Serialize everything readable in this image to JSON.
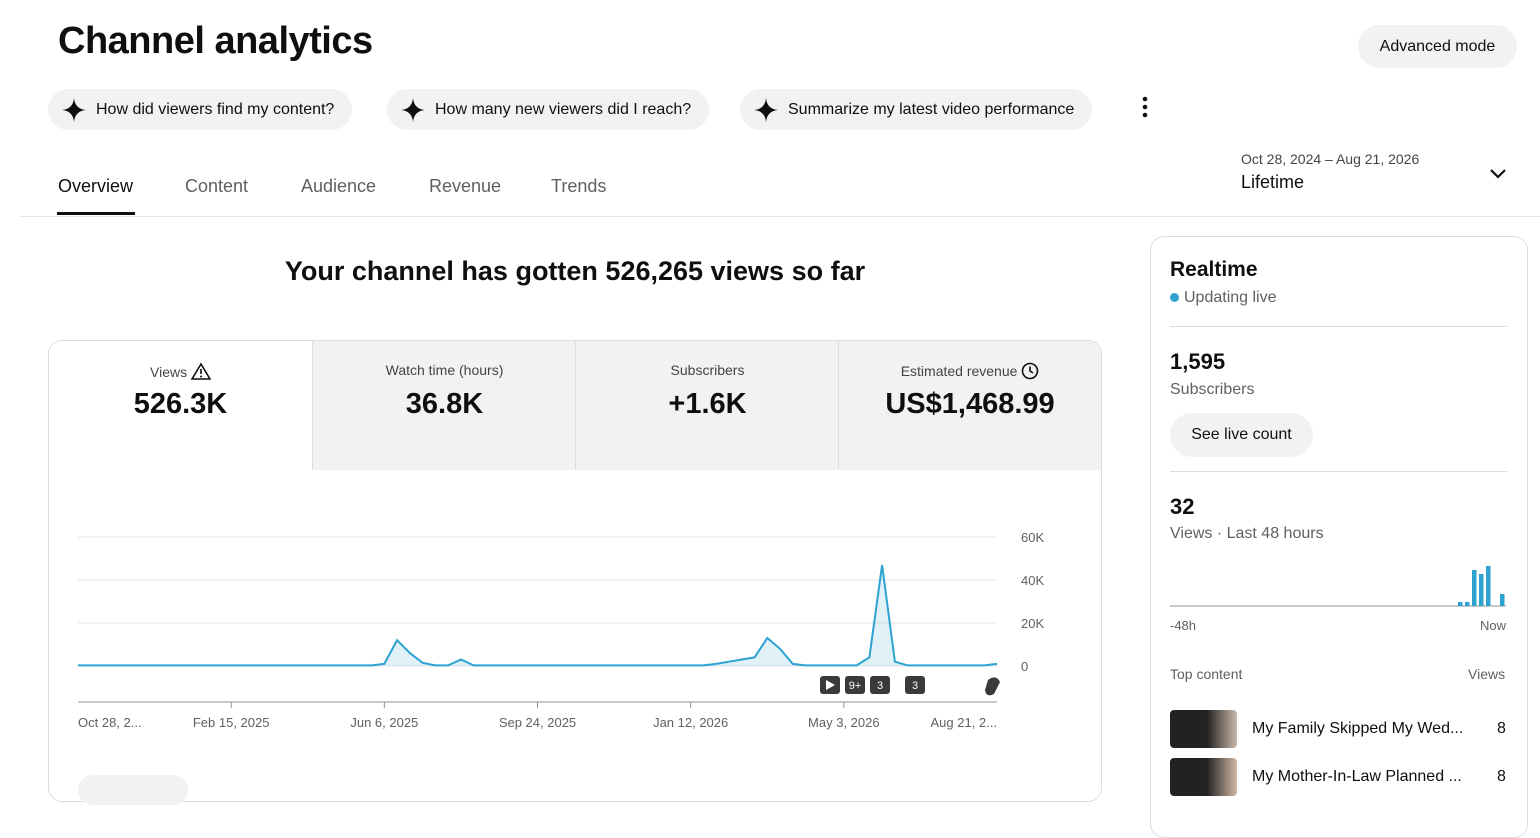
{
  "header": {
    "title": "Channel analytics",
    "advanced_mode": "Advanced mode"
  },
  "suggestions": [
    "How did viewers find my content?",
    "How many new viewers did I reach?",
    "Summarize my latest video performance"
  ],
  "tabs": [
    "Overview",
    "Content",
    "Audience",
    "Revenue",
    "Trends"
  ],
  "date_range": {
    "range": "Oct 28, 2024 – Aug 21, 2026",
    "label": "Lifetime"
  },
  "headline": "Your channel has gotten 526,265 views so far",
  "metrics": [
    {
      "label": "Views",
      "value": "526.3K"
    },
    {
      "label": "Watch time (hours)",
      "value": "36.8K"
    },
    {
      "label": "Subscribers",
      "value": "+1.6K"
    },
    {
      "label": "Estimated revenue",
      "value": "US$1,468.99"
    }
  ],
  "chart_markers": [
    "9+",
    "3",
    "3"
  ],
  "chart_data": [
    {
      "type": "line",
      "color": "#2ea3d1",
      "categories": [
        "Oct 28, 2...",
        null,
        null,
        null,
        null,
        null,
        null,
        null,
        null,
        null,
        null,
        null,
        "Feb 15, 2025",
        null,
        null,
        null,
        null,
        null,
        null,
        null,
        null,
        null,
        null,
        null,
        "Jun 6, 2025",
        null,
        null,
        null,
        null,
        null,
        null,
        null,
        null,
        null,
        null,
        null,
        "Sep 24, 2025",
        null,
        null,
        null,
        null,
        null,
        null,
        null,
        null,
        null,
        null,
        null,
        "Jan 12, 2026",
        null,
        null,
        null,
        null,
        null,
        null,
        null,
        null,
        null,
        null,
        null,
        "May 3, 2026",
        null,
        null,
        null,
        null,
        null,
        null,
        null,
        null,
        null,
        null,
        null,
        "Aug 21, 2..."
      ],
      "values": [
        300,
        300,
        300,
        300,
        300,
        300,
        300,
        300,
        300,
        300,
        300,
        300,
        300,
        300,
        300,
        300,
        300,
        300,
        300,
        300,
        300,
        300,
        300,
        300,
        1000,
        12000,
        6000,
        1500,
        300,
        300,
        3000,
        300,
        300,
        300,
        300,
        300,
        300,
        300,
        300,
        300,
        300,
        300,
        300,
        300,
        300,
        300,
        300,
        300,
        300,
        300,
        1000,
        2000,
        3000,
        4000,
        13000,
        8000,
        1000,
        300,
        300,
        300,
        300,
        300,
        4000,
        47000,
        2000,
        300,
        300,
        300,
        300,
        300,
        300,
        300,
        1000
      ],
      "ylim": [
        0,
        60000
      ],
      "yticks": [
        0,
        {
          "value": 20000,
          "label": "20K"
        },
        {
          "value": 40000,
          "label": "40K"
        },
        {
          "value": 60000,
          "label": "60K"
        }
      ],
      "grid": true
    },
    {
      "type": "bar",
      "color": "#2ea3d1",
      "categories": [
        "-48h",
        null,
        null,
        null,
        null,
        null,
        null,
        null,
        null,
        null,
        null,
        null,
        null,
        null,
        null,
        null,
        null,
        null,
        null,
        null,
        null,
        null,
        null,
        null,
        null,
        null,
        null,
        null,
        null,
        null,
        null,
        null,
        null,
        null,
        null,
        null,
        null,
        null,
        null,
        null,
        null,
        null,
        null,
        null,
        null,
        null,
        null,
        "Now"
      ],
      "values": [
        0,
        0,
        0,
        0,
        0,
        0,
        0,
        0,
        0,
        0,
        0,
        0,
        0,
        0,
        0,
        0,
        0,
        0,
        0,
        0,
        0,
        0,
        0,
        0,
        0,
        0,
        0,
        0,
        0,
        0,
        0,
        0,
        0,
        0,
        0,
        0,
        0,
        0,
        0,
        0,
        0,
        1,
        1,
        9,
        8,
        10,
        0,
        3
      ]
    }
  ],
  "realtime": {
    "title": "Realtime",
    "status": "Updating live",
    "subscribers": "1,595",
    "subscribers_label": "Subscribers",
    "see_live": "See live count",
    "views": "32",
    "views_label": "Views · Last 48 hours",
    "top_content": "Top content",
    "views_header": "Views",
    "rows": [
      {
        "title": "My Family Skipped My Wed...",
        "views": 8
      },
      {
        "title": "My Mother-In-Law Planned ...",
        "views": 8
      }
    ]
  }
}
